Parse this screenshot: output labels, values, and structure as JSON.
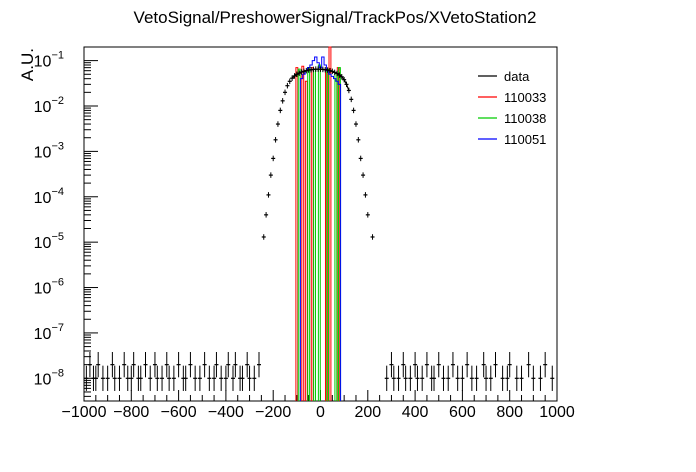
{
  "chart_data": {
    "type": "histogram",
    "title": "VetoSignal/PreshowerSignal/TrackPos/XVetoStation2",
    "xlabel": "",
    "ylabel": "A.U.",
    "xlim": [
      -1000,
      1000
    ],
    "ylim_log10": [
      -8.5,
      -0.7
    ],
    "yscale": "log",
    "grid": false,
    "legend_position": "top-right",
    "x_ticks": [
      "−1000",
      "−800",
      "−600",
      "−400",
      "−200",
      "0",
      "200",
      "400",
      "600",
      "800",
      "1000"
    ],
    "y_tick_exponents": [
      -8,
      -7,
      -6,
      -5,
      -4,
      -3,
      -2,
      -1
    ],
    "series": [
      {
        "name": "data",
        "color": "#000000",
        "style": "points",
        "points": [
          [
            -240,
            1.3e-05
          ],
          [
            -230,
            4e-05
          ],
          [
            -220,
            0.00011
          ],
          [
            -210,
            0.0003
          ],
          [
            -200,
            0.0007
          ],
          [
            -190,
            0.0018
          ],
          [
            -180,
            0.004
          ],
          [
            -170,
            0.008
          ],
          [
            -160,
            0.013
          ],
          [
            -150,
            0.02
          ],
          [
            -140,
            0.028
          ],
          [
            -130,
            0.035
          ],
          [
            -120,
            0.041
          ],
          [
            -110,
            0.046
          ],
          [
            -100,
            0.05
          ],
          [
            -90,
            0.053
          ],
          [
            -80,
            0.056
          ],
          [
            -70,
            0.058
          ],
          [
            -60,
            0.06
          ],
          [
            -50,
            0.062
          ],
          [
            -40,
            0.063
          ],
          [
            -30,
            0.064
          ],
          [
            -20,
            0.065
          ],
          [
            -10,
            0.065
          ],
          [
            0,
            0.065
          ],
          [
            10,
            0.064
          ],
          [
            20,
            0.063
          ],
          [
            30,
            0.062
          ],
          [
            40,
            0.06
          ],
          [
            50,
            0.058
          ],
          [
            60,
            0.055
          ],
          [
            70,
            0.052
          ],
          [
            80,
            0.048
          ],
          [
            90,
            0.044
          ],
          [
            100,
            0.038
          ],
          [
            110,
            0.03
          ],
          [
            120,
            0.022
          ],
          [
            130,
            0.014
          ],
          [
            140,
            0.008
          ],
          [
            150,
            0.004
          ],
          [
            160,
            0.0018
          ],
          [
            170,
            0.0007
          ],
          [
            180,
            0.0003
          ],
          [
            190,
            0.00011
          ],
          [
            200,
            4e-05
          ],
          [
            220,
            1.3e-05
          ],
          [
            -990,
            1e-08
          ],
          [
            -975,
            2e-08
          ],
          [
            -960,
            1e-08
          ],
          [
            -950,
            1e-08
          ],
          [
            -940,
            2e-08
          ],
          [
            -920,
            1e-08
          ],
          [
            -900,
            1e-08
          ],
          [
            -880,
            2e-08
          ],
          [
            -870,
            1e-08
          ],
          [
            -850,
            1e-08
          ],
          [
            -830,
            2e-08
          ],
          [
            -815,
            1e-08
          ],
          [
            -800,
            1e-08
          ],
          [
            -790,
            2e-08
          ],
          [
            -770,
            1e-08
          ],
          [
            -760,
            1e-08
          ],
          [
            -740,
            2e-08
          ],
          [
            -720,
            1e-08
          ],
          [
            -700,
            2e-08
          ],
          [
            -690,
            1e-08
          ],
          [
            -670,
            1e-08
          ],
          [
            -650,
            2e-08
          ],
          [
            -640,
            1e-08
          ],
          [
            -620,
            1e-08
          ],
          [
            -600,
            2e-08
          ],
          [
            -580,
            1e-08
          ],
          [
            -570,
            1e-08
          ],
          [
            -550,
            2e-08
          ],
          [
            -530,
            1e-08
          ],
          [
            -510,
            1e-08
          ],
          [
            -490,
            2e-08
          ],
          [
            -470,
            1e-08
          ],
          [
            -450,
            1e-08
          ],
          [
            -440,
            2e-08
          ],
          [
            -420,
            1e-08
          ],
          [
            -400,
            1e-08
          ],
          [
            -390,
            2e-08
          ],
          [
            -370,
            1e-08
          ],
          [
            -360,
            2e-08
          ],
          [
            -340,
            1e-08
          ],
          [
            -330,
            1e-08
          ],
          [
            -310,
            2e-08
          ],
          [
            -300,
            1e-08
          ],
          [
            -280,
            1e-08
          ],
          [
            -260,
            2e-08
          ],
          [
            280,
            1e-08
          ],
          [
            300,
            2e-08
          ],
          [
            310,
            1e-08
          ],
          [
            330,
            1e-08
          ],
          [
            350,
            2e-08
          ],
          [
            360,
            1e-08
          ],
          [
            380,
            1e-08
          ],
          [
            400,
            2e-08
          ],
          [
            410,
            1e-08
          ],
          [
            430,
            1e-08
          ],
          [
            450,
            2e-08
          ],
          [
            470,
            1e-08
          ],
          [
            480,
            1e-08
          ],
          [
            500,
            2e-08
          ],
          [
            520,
            1e-08
          ],
          [
            540,
            1e-08
          ],
          [
            560,
            2e-08
          ],
          [
            580,
            1e-08
          ],
          [
            600,
            1e-08
          ],
          [
            620,
            2e-08
          ],
          [
            640,
            1e-08
          ],
          [
            660,
            1e-08
          ],
          [
            690,
            2e-08
          ],
          [
            700,
            1e-08
          ],
          [
            720,
            1e-08
          ],
          [
            740,
            2e-08
          ],
          [
            770,
            1e-08
          ],
          [
            790,
            1e-08
          ],
          [
            800,
            2e-08
          ],
          [
            830,
            1e-08
          ],
          [
            850,
            1e-08
          ],
          [
            880,
            2e-08
          ],
          [
            900,
            1e-08
          ],
          [
            930,
            1e-08
          ],
          [
            950,
            2e-08
          ],
          [
            980,
            1e-08
          ]
        ]
      },
      {
        "name": "110033",
        "color": "#ff0000",
        "style": "bars",
        "bars": [
          [
            -100,
            0.07
          ],
          [
            -75,
            0.075
          ],
          [
            -60,
            0.035
          ],
          [
            -35,
            0.07
          ],
          [
            25,
            0.065
          ],
          [
            40,
            0.27
          ],
          [
            75,
            0.07
          ]
        ]
      },
      {
        "name": "110038",
        "color": "#00cc00",
        "style": "bars",
        "bars": [
          [
            -90,
            0.065
          ],
          [
            -50,
            0.07
          ],
          [
            -25,
            0.065
          ],
          [
            -5,
            0.08
          ],
          [
            30,
            0.065
          ],
          [
            65,
            0.055
          ],
          [
            80,
            0.07
          ]
        ]
      },
      {
        "name": "110051",
        "color": "#0000ff",
        "style": "step",
        "step": [
          [
            -80,
            0.04
          ],
          [
            -70,
            0.05
          ],
          [
            -60,
            0.06
          ],
          [
            -50,
            0.07
          ],
          [
            -40,
            0.08
          ],
          [
            -30,
            0.1
          ],
          [
            -20,
            0.12
          ],
          [
            -10,
            0.09
          ],
          [
            0,
            0.07
          ],
          [
            10,
            0.12
          ],
          [
            20,
            0.08
          ],
          [
            30,
            0.06
          ],
          [
            40,
            0.05
          ],
          [
            50,
            0.045
          ],
          [
            60,
            0.04
          ],
          [
            70,
            0.035
          ],
          [
            80,
            0.03
          ]
        ]
      }
    ]
  }
}
